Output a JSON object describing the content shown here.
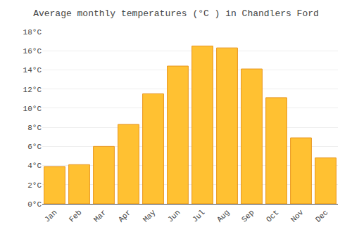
{
  "chart_data": {
    "type": "bar",
    "title": "Average monthly temperatures (°C ) in Chandlers Ford",
    "categories": [
      "Jan",
      "Feb",
      "Mar",
      "Apr",
      "May",
      "Jun",
      "Jul",
      "Aug",
      "Sep",
      "Oct",
      "Nov",
      "Dec"
    ],
    "values": [
      3.9,
      4.1,
      6.0,
      8.3,
      11.5,
      14.4,
      16.5,
      16.3,
      14.1,
      11.1,
      6.9,
      4.8
    ],
    "color": "#FFC132",
    "ylim": [
      0,
      18
    ],
    "yticks": [
      {
        "value": 0,
        "label": "0°C"
      },
      {
        "value": 2,
        "label": "2°C"
      },
      {
        "value": 4,
        "label": "4°C"
      },
      {
        "value": 6,
        "label": "6°C"
      },
      {
        "value": 8,
        "label": "8°C"
      },
      {
        "value": 10,
        "label": "10°C"
      },
      {
        "value": 12,
        "label": "12°C"
      },
      {
        "value": 14,
        "label": "14°C"
      },
      {
        "value": 16,
        "label": "16°C"
      },
      {
        "value": 18,
        "label": "18°C"
      }
    ],
    "grid": true
  }
}
